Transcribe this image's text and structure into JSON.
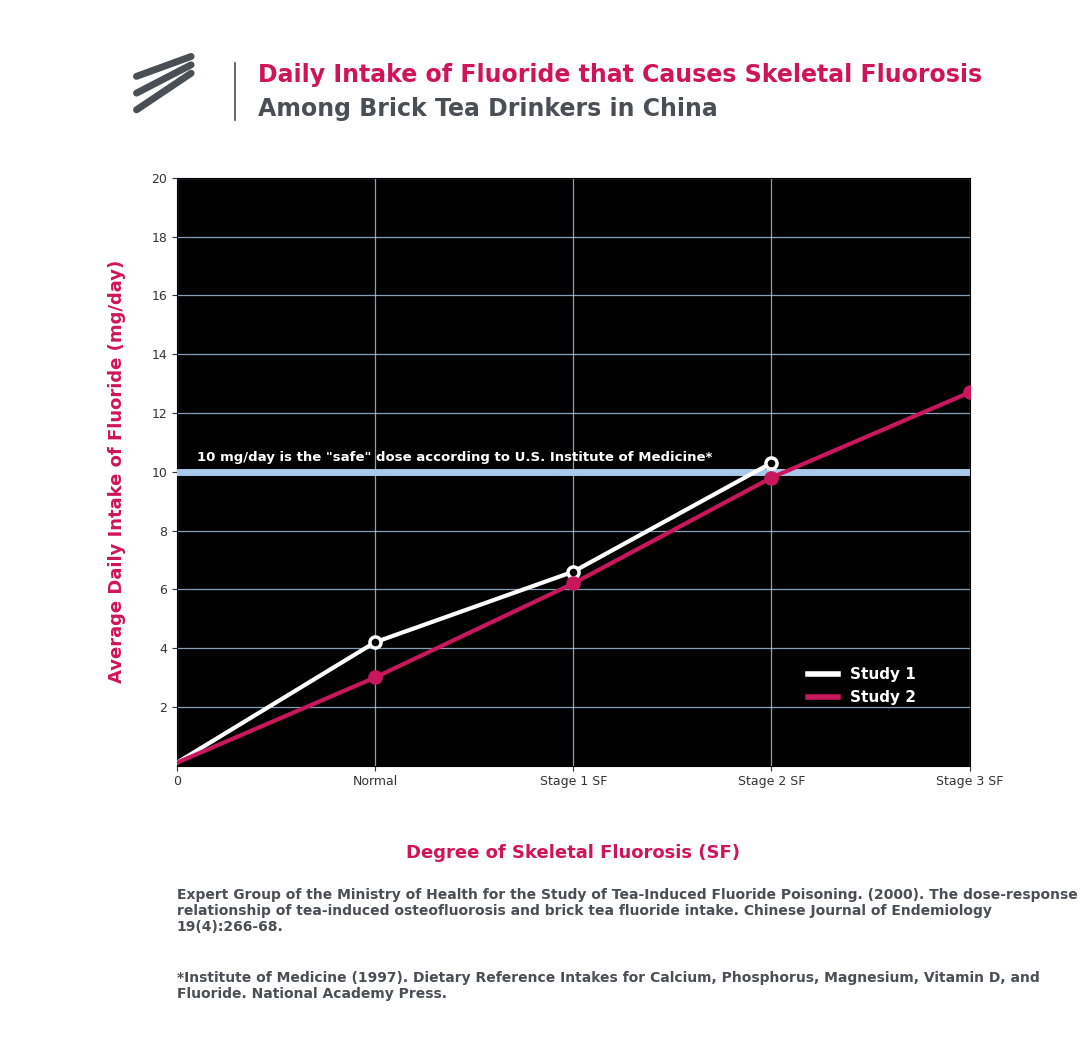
{
  "chart_data": {
    "type": "line",
    "title": "Daily Intake of Fluoride that Causes Skeletal Fluorosis",
    "subtitle": "Among Brick Tea Drinkers in China",
    "x_label": "Degree of Skeletal Fluorosis (SF)",
    "y_label": "Average Daily Intake of Fluoride (mg/day)",
    "categories": [
      "0",
      "Normal",
      "Stage 1 SF",
      "Stage 2 SF",
      "Stage 3 SF"
    ],
    "series": [
      {
        "name": "Study 1",
        "color": "#ffffff",
        "marker": "o",
        "values": [
          0.1,
          4.2,
          6.6,
          10.3,
          null
        ]
      },
      {
        "name": "Study 2",
        "color": "#c8175d",
        "marker": "o",
        "values": [
          0.1,
          3.0,
          6.2,
          9.8,
          12.7
        ]
      }
    ],
    "ylim": [
      0,
      20
    ],
    "yticks": [
      2,
      4,
      6,
      8,
      10,
      12,
      14,
      16,
      18,
      20
    ],
    "grid": true,
    "legend": "lower right",
    "reference_line": {
      "value": 10,
      "label": "10 mg/day is the \"safe\" dose according to U.S. Institute of Medicine*",
      "color": "#a9c9ea"
    },
    "source": "Expert Group of the Ministry of Health for the Study of Tea-Induced Fluoride Poisoning. (2000). The dose-response relationship of tea-induced osteofluorosis and brick tea fluoride intake. Chinese Journal of Endemiology 19(4):266-68.",
    "footnote": "*Institute of Medicine (1997). Dietary Reference Intakes for Calcium, Phosphorus, Magnesium, Vitamin D, and Fluoride. National Academy Press."
  }
}
